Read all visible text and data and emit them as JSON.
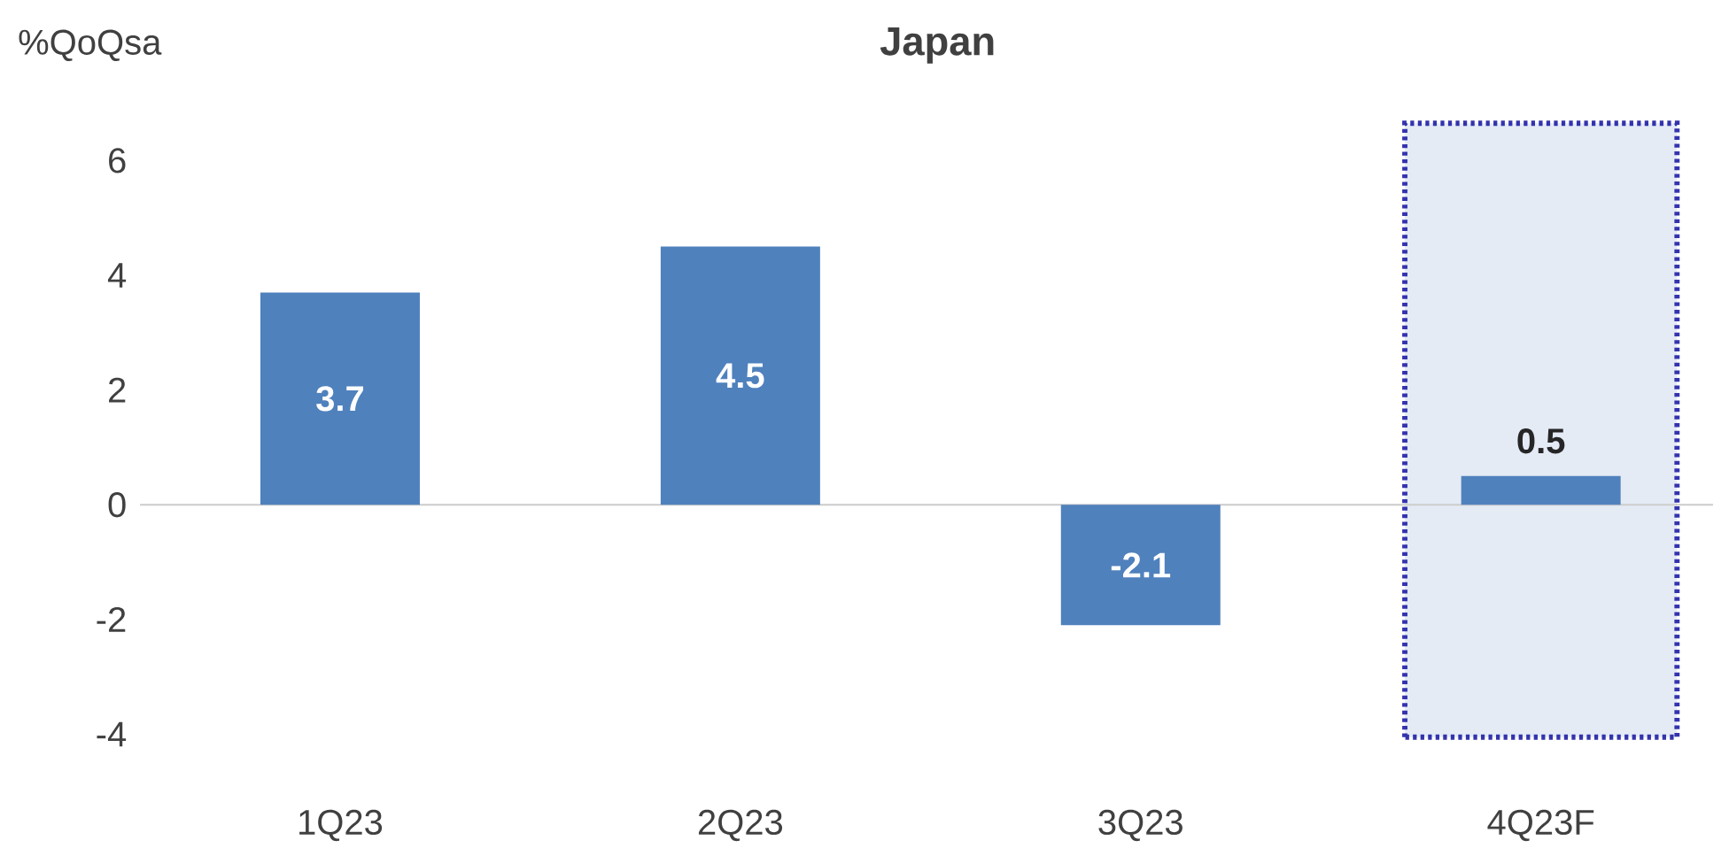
{
  "chart_data": {
    "type": "bar",
    "title": "Japan",
    "ylabel": "%QoQsa",
    "categories": [
      "1Q23",
      "2Q23",
      "3Q23",
      "4Q23F"
    ],
    "values": [
      3.7,
      4.5,
      -2.1,
      0.5
    ],
    "color": "#4f81bd",
    "data_labels": true,
    "ylim": [
      -4.1,
      6.7
    ],
    "yticks": [
      -4,
      -2,
      0,
      2,
      4,
      6
    ],
    "bands": [
      {
        "axis": "x",
        "from": "4Q23F",
        "to": "4Q23F",
        "color": "#e4ebf5"
      }
    ]
  }
}
